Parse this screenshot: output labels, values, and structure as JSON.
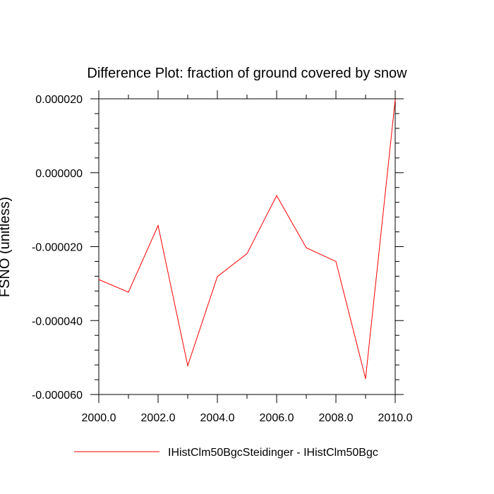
{
  "chart_data": {
    "type": "line",
    "title": "Difference Plot: fraction of ground covered by snow",
    "xlabel": "",
    "ylabel": "FSNO  (unitless)",
    "xlim": [
      2000,
      2010
    ],
    "ylim": [
      -6e-05,
      2e-05
    ],
    "x_ticks": [
      2000,
      2002,
      2004,
      2006,
      2008,
      2010
    ],
    "x_tick_labels": [
      "2000.0",
      "2002.0",
      "2004.0",
      "2006.0",
      "2008.0",
      "2010.0"
    ],
    "y_ticks": [
      2e-05,
      0.0,
      -2e-05,
      -4e-05,
      -6e-05
    ],
    "y_tick_labels": [
      "0.000020",
      "0.000000",
      "-0.000020",
      "-0.000040",
      "-0.000060"
    ],
    "grid": false,
    "legend_position": "bottom",
    "series": [
      {
        "name": "IHistClm50BgcSteidinger - IHistClm50Bgc",
        "color": "#ff0000",
        "x": [
          2000,
          2001,
          2002,
          2003,
          2004,
          2005,
          2006,
          2007,
          2008,
          2009,
          2010
        ],
        "y": [
          -2.89e-05,
          -3.23e-05,
          -1.43e-05,
          -5.22e-05,
          -2.81e-05,
          -2.19e-05,
          -6.2e-06,
          -2.03e-05,
          -2.4e-05,
          -5.57e-05,
          1.98e-05
        ]
      }
    ]
  }
}
